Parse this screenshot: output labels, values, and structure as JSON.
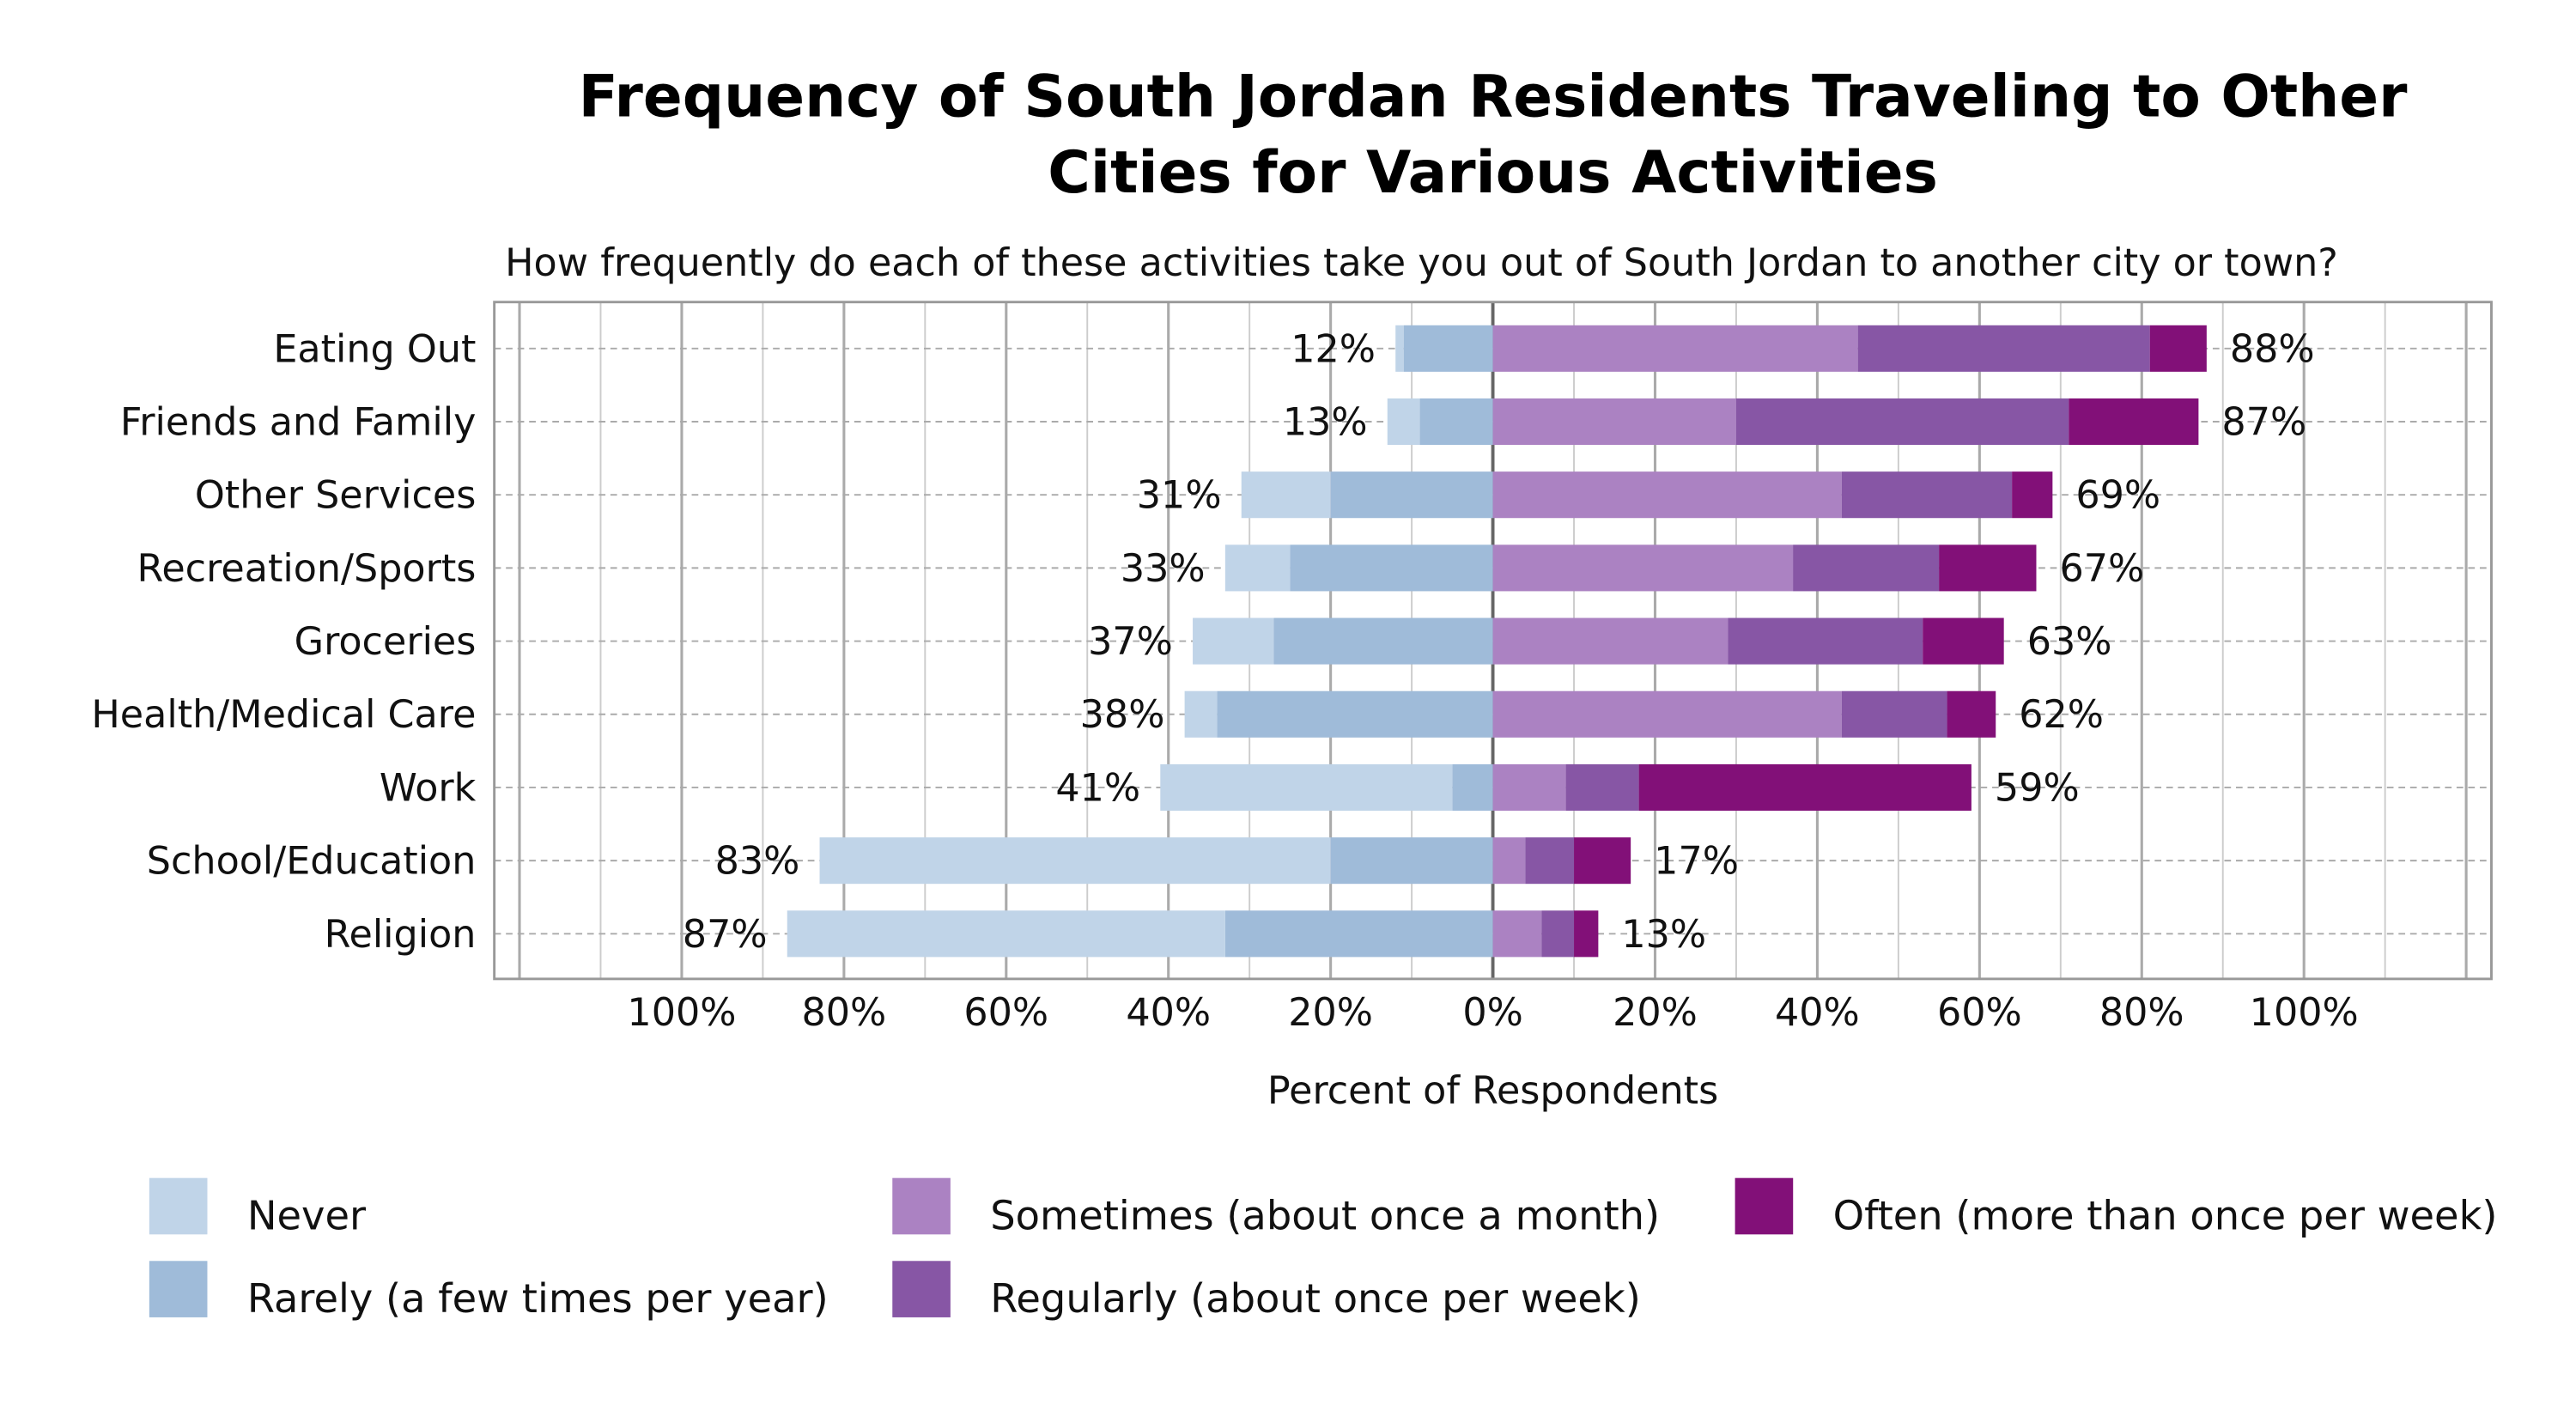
{
  "chart_data": {
    "type": "bar",
    "orientation": "horizontal",
    "stacked": "diverging",
    "title": "Frequency of South Jordan Residents Traveling to Other Cities for Various Activities",
    "title_lines": [
      "Frequency of South Jordan Residents Traveling to Other",
      "Cities for Various Activities"
    ],
    "subtitle": "How frequently do each of these activities take you out of South Jordan to another city or town?",
    "xlabel": "Percent of Respondents",
    "ylabel": "",
    "xlim": [
      -100,
      100
    ],
    "xticks": [
      "100%",
      "80%",
      "60%",
      "40%",
      "20%",
      "0%",
      "20%",
      "40%",
      "60%",
      "80%",
      "100%"
    ],
    "grid": true,
    "legend_placement": "bottom",
    "categories": [
      "Eating Out",
      "Friends and Family",
      "Other Services",
      "Recreation/Sports",
      "Groceries",
      "Health/Medical Care",
      "Work",
      "School/Education",
      "Religion"
    ],
    "series": [
      {
        "name": "Never",
        "side": "left",
        "color": "#c0d4e8",
        "values": [
          1,
          4,
          11,
          8,
          10,
          4,
          36,
          63,
          54
        ]
      },
      {
        "name": "Rarely (a few times per year)",
        "side": "left",
        "color": "#9fbbd9",
        "values": [
          11,
          9,
          20,
          25,
          27,
          34,
          5,
          20,
          33
        ]
      },
      {
        "name": "Sometimes (about once a month)",
        "side": "right",
        "color": "#ab82c2",
        "values": [
          45,
          30,
          43,
          37,
          29,
          43,
          9,
          4,
          6
        ]
      },
      {
        "name": "Regularly (about once per week)",
        "side": "right",
        "color": "#8756a5",
        "values": [
          36,
          41,
          21,
          18,
          24,
          13,
          9,
          6,
          4
        ]
      },
      {
        "name": "Often (more than once per week)",
        "side": "right",
        "color": "#821078",
        "values": [
          7,
          16,
          5,
          12,
          10,
          6,
          41,
          7,
          3
        ]
      }
    ],
    "left_totals": [
      "12%",
      "13%",
      "31%",
      "33%",
      "37%",
      "38%",
      "41%",
      "83%",
      "87%"
    ],
    "right_totals": [
      "88%",
      "87%",
      "69%",
      "67%",
      "63%",
      "62%",
      "59%",
      "17%",
      "13%"
    ],
    "legend_order": [
      0,
      2,
      4,
      1,
      3
    ]
  }
}
